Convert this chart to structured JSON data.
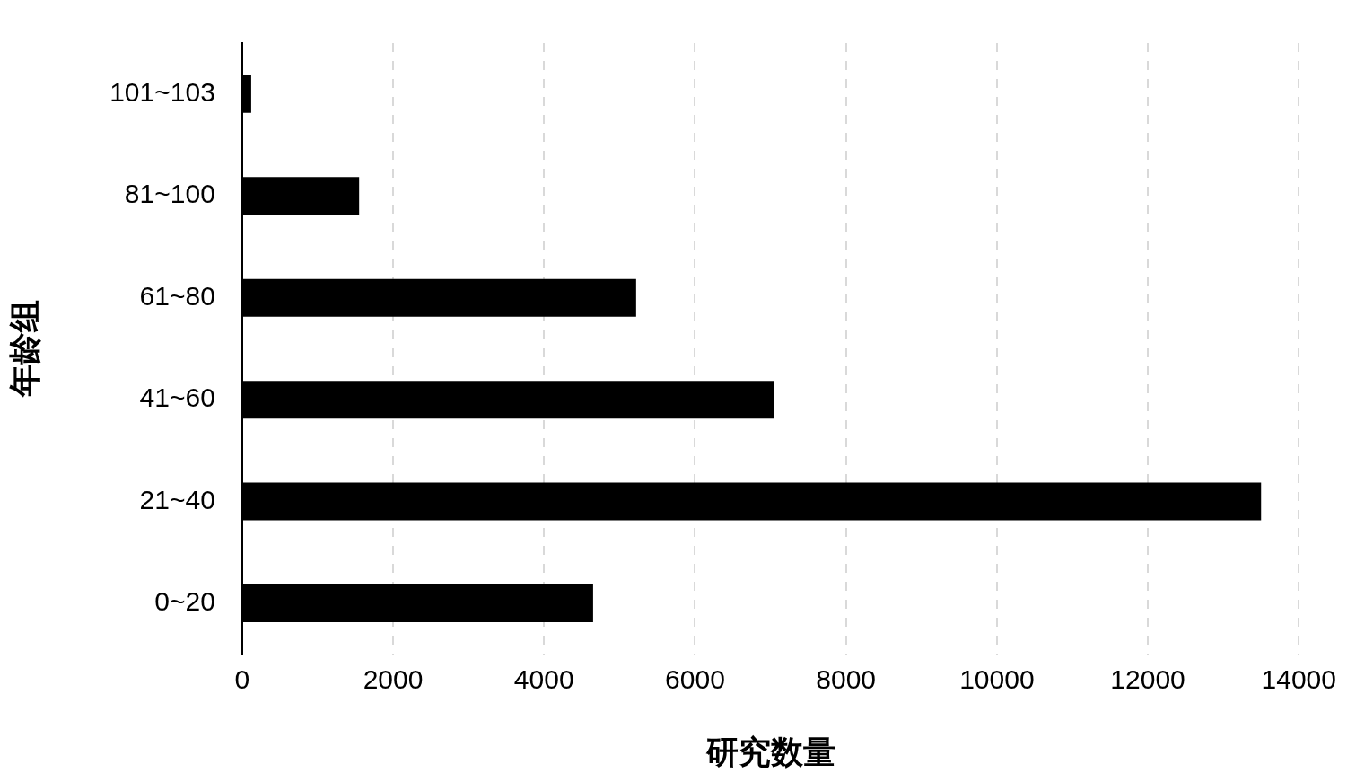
{
  "chart_data": {
    "type": "bar",
    "orientation": "horizontal",
    "xlabel": "研究数量",
    "ylabel": "年龄组",
    "categories": [
      "101~103",
      "81~100",
      "61~80",
      "41~60",
      "21~40",
      "0~20"
    ],
    "values": [
      120,
      1550,
      5220,
      7050,
      13500,
      4650
    ],
    "color": "#000000",
    "xlim": [
      0,
      14000
    ],
    "xticks": [
      0,
      2000,
      4000,
      6000,
      8000,
      10000,
      12000,
      14000
    ],
    "grid": "x",
    "legend": false
  }
}
